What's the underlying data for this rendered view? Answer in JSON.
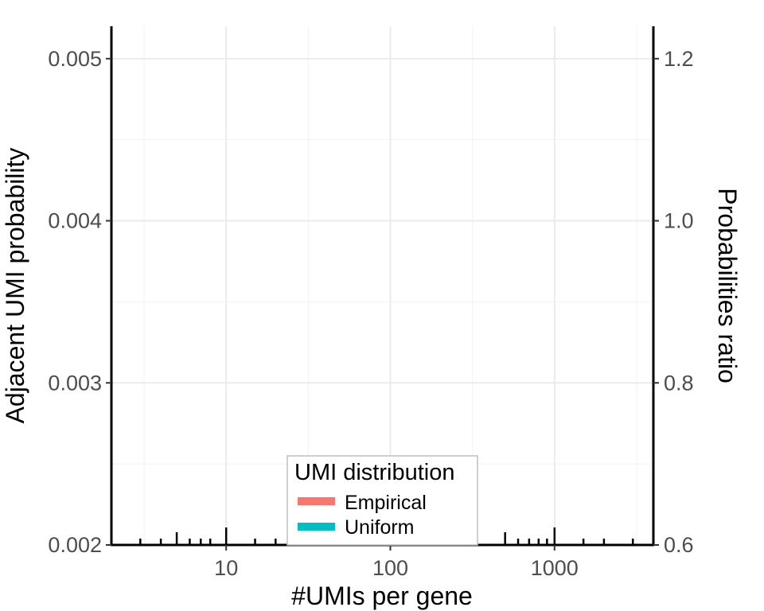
{
  "chart_data": {
    "type": "line",
    "title": "",
    "xlabel": "#UMIs per gene",
    "ylabel": "Adjacent UMI probability",
    "y2label": "Probabilities ratio",
    "x_scale": "log10",
    "xlim": [
      2,
      4000
    ],
    "ylim": [
      0.002,
      0.0052
    ],
    "y2lim": [
      0.6,
      1.24
    ],
    "x_ticks": [
      10,
      100,
      1000
    ],
    "x_tick_labels": [
      "10",
      "100",
      "1000"
    ],
    "y_ticks": [
      0.002,
      0.003,
      0.004,
      0.005
    ],
    "y_tick_labels": [
      "0.002",
      "0.003",
      "0.004",
      "0.005"
    ],
    "y2_ticks": [
      0.6,
      0.8,
      1.0,
      1.2
    ],
    "y2_tick_labels": [
      "0.6",
      "0.8",
      "1.0",
      "1.2"
    ],
    "grid": true,
    "legend": {
      "title": "UMI distribution",
      "position": "bottom-center",
      "entries": [
        {
          "label": "Empirical",
          "color": "#F8766D"
        },
        {
          "label": "Uniform",
          "color": "#00BFC4"
        }
      ]
    },
    "series": [
      {
        "name": "Empirical",
        "color": "#F8766D",
        "x": [],
        "y": []
      },
      {
        "name": "Uniform",
        "color": "#00BFC4",
        "x": [],
        "y": []
      }
    ],
    "rug_x": [
      3,
      4,
      5,
      6,
      7,
      8,
      10,
      15,
      20,
      30,
      40,
      50,
      60,
      70,
      80,
      100,
      150,
      200,
      300,
      500,
      600,
      700,
      800,
      900,
      1000,
      1500,
      2000,
      3000
    ]
  }
}
